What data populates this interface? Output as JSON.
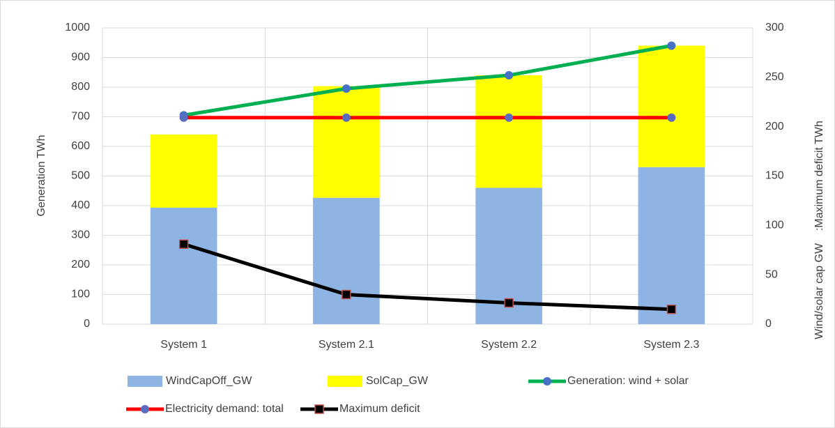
{
  "chart_data": {
    "type": "combo",
    "categories": [
      "System 1",
      "System 2.1",
      "System 2.2",
      "System 2.3"
    ],
    "y_label": "Generation TWh",
    "y2_label": "Wind/solar cap GW    :Maximum deficit TWh",
    "ylim": [
      0,
      1000
    ],
    "yticks": [
      0,
      100,
      200,
      300,
      400,
      500,
      600,
      700,
      800,
      900,
      1000
    ],
    "y2lim": [
      0,
      300
    ],
    "y2ticks": [
      0,
      50,
      100,
      150,
      200,
      250,
      300
    ],
    "grid": true,
    "legend": "bottom",
    "series": [
      {
        "name": "WindCapOff_GW",
        "type": "bar",
        "axis": "y2",
        "color": "#8eb4e3",
        "values": [
          118,
          128,
          138,
          159
        ]
      },
      {
        "name": "SolCap_GW",
        "type": "bar",
        "axis": "y2",
        "color": "#ffff00",
        "values": [
          74,
          113,
          114,
          123
        ]
      },
      {
        "name": "Generation: wind + solar",
        "type": "line",
        "color": "#00b050",
        "marker": "circle",
        "marker_color": "#4472c4",
        "values": [
          705,
          795,
          840,
          940
        ]
      },
      {
        "name": "Electricity demand: total",
        "type": "line",
        "color": "#ff0000",
        "marker": "circle",
        "marker_color": "#5b6bc0",
        "values": [
          697,
          697,
          697,
          697
        ]
      },
      {
        "name": "Maximum deficit",
        "type": "line",
        "axis": "y2",
        "color": "#000000",
        "marker": "square",
        "marker_color": "#c0504d",
        "values": [
          81,
          30,
          21.5,
          15
        ]
      }
    ]
  }
}
